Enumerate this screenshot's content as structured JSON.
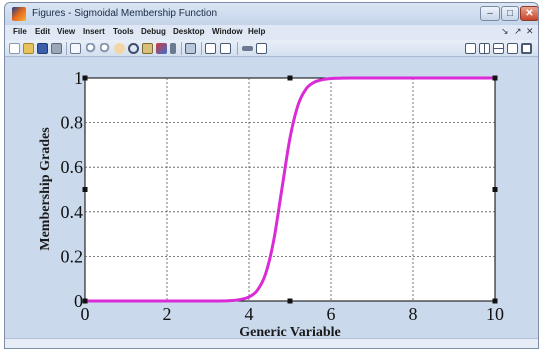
{
  "window": {
    "title": "Figures - Sigmoidal Membership Function",
    "controls": [
      "–",
      "□",
      "✕"
    ]
  },
  "menubar": {
    "items": [
      "File",
      "Edit",
      "View",
      "Insert",
      "Tools",
      "Debug",
      "Desktop",
      "Window",
      "Help"
    ],
    "right_symbols": [
      "↘",
      "↗",
      "✕"
    ]
  },
  "toolbar": {
    "left_icons": [
      "new-figure-icon",
      "open-file-icon",
      "save-icon",
      "print-icon",
      "select-arrow-icon",
      "zoom-in-icon",
      "zoom-out-icon",
      "pan-icon",
      "rotate-icon",
      "data-cursor-icon",
      "brush-icon",
      "link-icon",
      "colorbar-icon",
      "legend-icon",
      "hide-plot-tools-icon",
      "show-plot-tools-icon"
    ],
    "right_icons": [
      "tile-icon",
      "left-right-split-icon",
      "top-bottom-split-icon",
      "float-icon",
      "dock-icon"
    ]
  },
  "chart_data": {
    "type": "line",
    "title": "",
    "xlabel": "Generic Variable",
    "ylabel": "Membership Grades",
    "xlim": [
      0,
      10
    ],
    "ylim": [
      0,
      1
    ],
    "xticks": [
      "0",
      "2",
      "4",
      "6",
      "8",
      "10"
    ],
    "yticks": [
      "0",
      "0.2",
      "0.4",
      "0.6",
      "0.8",
      "1"
    ],
    "grid": true,
    "series": [
      {
        "color": "#d92bd6",
        "x": [
          0,
          1,
          2,
          3,
          3.5,
          3.8,
          4.0,
          4.2,
          4.4,
          4.6,
          4.8,
          5.0,
          5.2,
          5.4,
          5.6,
          5.8,
          6.0,
          6.2,
          6.5,
          7,
          8,
          9,
          10
        ],
        "y": [
          0,
          0,
          0,
          0,
          0.001,
          0.007,
          0.018,
          0.047,
          0.119,
          0.269,
          0.5,
          0.731,
          0.881,
          0.953,
          0.982,
          0.993,
          0.998,
          0.999,
          1.0,
          1.0,
          1.0,
          1.0,
          1.0
        ]
      }
    ]
  }
}
